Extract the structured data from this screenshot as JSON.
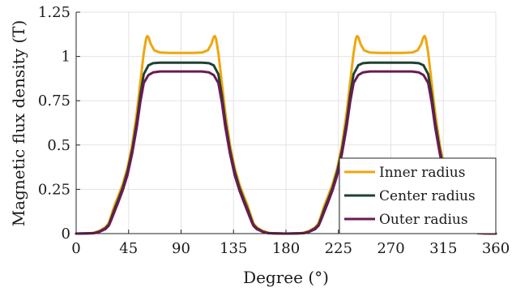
{
  "chart_data": {
    "type": "line",
    "title": "",
    "xlabel": "Degree (°)",
    "ylabel": "Magnetic flux density (T)",
    "xlim": [
      0,
      360
    ],
    "ylim": [
      0,
      1.25
    ],
    "grid": true,
    "legend_position": "bottom-right",
    "x_ticks": [
      {
        "value": 0,
        "label": "0"
      },
      {
        "value": 45,
        "label": "45"
      },
      {
        "value": 90,
        "label": "90"
      },
      {
        "value": 135,
        "label": "135"
      },
      {
        "value": 180,
        "label": "180"
      },
      {
        "value": 225,
        "label": "225"
      },
      {
        "value": 270,
        "label": "270"
      },
      {
        "value": 315,
        "label": "315"
      },
      {
        "value": 360,
        "label": "360"
      }
    ],
    "y_ticks": [
      {
        "value": 0,
        "label": "0"
      },
      {
        "value": 0.25,
        "label": "0.25"
      },
      {
        "value": 0.5,
        "label": "0.5"
      },
      {
        "value": 0.75,
        "label": "0.75"
      },
      {
        "value": 1,
        "label": "1"
      },
      {
        "value": 1.25,
        "label": "1.25"
      }
    ],
    "series": [
      {
        "name": "Inner radius",
        "color": "#EFA60E",
        "x": [
          0,
          10,
          15,
          20,
          25,
          28,
          30,
          33,
          36,
          40,
          44,
          48,
          52,
          55,
          58,
          60,
          61,
          62,
          64,
          67,
          72,
          80,
          90,
          100,
          108,
          113,
          116,
          118,
          119,
          120,
          122,
          125,
          128,
          132,
          136,
          140,
          144,
          147,
          150,
          152,
          155,
          160,
          165,
          170,
          180,
          190,
          195,
          200,
          205,
          208,
          210,
          213,
          216,
          220,
          224,
          228,
          232,
          235,
          238,
          240,
          241,
          242,
          244,
          247,
          252,
          260,
          270,
          280,
          288,
          293,
          296,
          298,
          299,
          300,
          302,
          305,
          308,
          312,
          316,
          320,
          324,
          327,
          330,
          332,
          335,
          340,
          345,
          350,
          360
        ],
        "y": [
          0.0,
          0.0,
          0.005,
          0.015,
          0.035,
          0.06,
          0.1,
          0.16,
          0.21,
          0.28,
          0.37,
          0.5,
          0.68,
          0.85,
          1.02,
          1.1,
          1.115,
          1.11,
          1.07,
          1.035,
          1.022,
          1.02,
          1.02,
          1.02,
          1.022,
          1.035,
          1.07,
          1.11,
          1.115,
          1.1,
          1.02,
          0.85,
          0.68,
          0.5,
          0.37,
          0.28,
          0.21,
          0.16,
          0.1,
          0.06,
          0.035,
          0.015,
          0.005,
          0.0,
          0.0,
          0.0,
          0.005,
          0.015,
          0.035,
          0.06,
          0.1,
          0.16,
          0.21,
          0.28,
          0.37,
          0.5,
          0.68,
          0.85,
          1.02,
          1.1,
          1.115,
          1.11,
          1.07,
          1.035,
          1.022,
          1.02,
          1.02,
          1.02,
          1.022,
          1.035,
          1.07,
          1.11,
          1.115,
          1.1,
          1.02,
          0.85,
          0.68,
          0.5,
          0.37,
          0.28,
          0.21,
          0.16,
          0.1,
          0.06,
          0.035,
          0.015,
          0.005,
          0.0,
          0.0
        ]
      },
      {
        "name": "Center radius",
        "color": "#1F4232",
        "x": [
          0,
          15,
          20,
          25,
          28,
          30,
          33,
          36,
          40,
          44,
          48,
          52,
          55,
          58,
          62,
          66,
          72,
          90,
          108,
          114,
          118,
          122,
          125,
          128,
          132,
          136,
          140,
          144,
          147,
          150,
          152,
          155,
          160,
          165,
          180,
          195,
          200,
          205,
          208,
          210,
          213,
          216,
          220,
          224,
          228,
          232,
          235,
          238,
          242,
          246,
          252,
          270,
          288,
          294,
          298,
          302,
          305,
          308,
          312,
          316,
          320,
          324,
          327,
          330,
          332,
          335,
          340,
          345,
          360
        ],
        "y": [
          0.0,
          0.002,
          0.012,
          0.03,
          0.05,
          0.085,
          0.14,
          0.19,
          0.26,
          0.35,
          0.47,
          0.63,
          0.78,
          0.9,
          0.95,
          0.962,
          0.965,
          0.965,
          0.965,
          0.962,
          0.95,
          0.9,
          0.78,
          0.63,
          0.47,
          0.35,
          0.26,
          0.19,
          0.14,
          0.085,
          0.05,
          0.03,
          0.012,
          0.002,
          0.0,
          0.002,
          0.012,
          0.03,
          0.05,
          0.085,
          0.14,
          0.19,
          0.26,
          0.35,
          0.47,
          0.63,
          0.78,
          0.9,
          0.95,
          0.962,
          0.965,
          0.965,
          0.965,
          0.962,
          0.95,
          0.9,
          0.78,
          0.63,
          0.47,
          0.35,
          0.26,
          0.19,
          0.14,
          0.085,
          0.05,
          0.03,
          0.012,
          0.002,
          0.0
        ]
      },
      {
        "name": "Outer radius",
        "color": "#6B1A55",
        "x": [
          0,
          15,
          20,
          25,
          28,
          30,
          33,
          36,
          40,
          44,
          48,
          52,
          55,
          58,
          62,
          66,
          72,
          90,
          108,
          114,
          118,
          122,
          125,
          128,
          132,
          136,
          140,
          144,
          147,
          150,
          152,
          155,
          160,
          165,
          180,
          195,
          200,
          205,
          208,
          210,
          213,
          216,
          220,
          224,
          228,
          232,
          235,
          238,
          242,
          246,
          252,
          270,
          288,
          294,
          298,
          302,
          305,
          308,
          312,
          316,
          320,
          324,
          327,
          330,
          332,
          335,
          340,
          345,
          360
        ],
        "y": [
          0.0,
          0.002,
          0.01,
          0.025,
          0.045,
          0.075,
          0.125,
          0.175,
          0.245,
          0.33,
          0.45,
          0.6,
          0.74,
          0.85,
          0.895,
          0.91,
          0.915,
          0.915,
          0.915,
          0.91,
          0.895,
          0.85,
          0.74,
          0.6,
          0.45,
          0.33,
          0.245,
          0.175,
          0.125,
          0.075,
          0.045,
          0.025,
          0.01,
          0.002,
          0.0,
          0.002,
          0.01,
          0.025,
          0.045,
          0.075,
          0.125,
          0.175,
          0.245,
          0.33,
          0.45,
          0.6,
          0.74,
          0.85,
          0.895,
          0.91,
          0.915,
          0.915,
          0.915,
          0.91,
          0.895,
          0.85,
          0.74,
          0.6,
          0.45,
          0.33,
          0.245,
          0.175,
          0.125,
          0.075,
          0.045,
          0.025,
          0.01,
          0.002,
          0.0
        ]
      }
    ]
  }
}
